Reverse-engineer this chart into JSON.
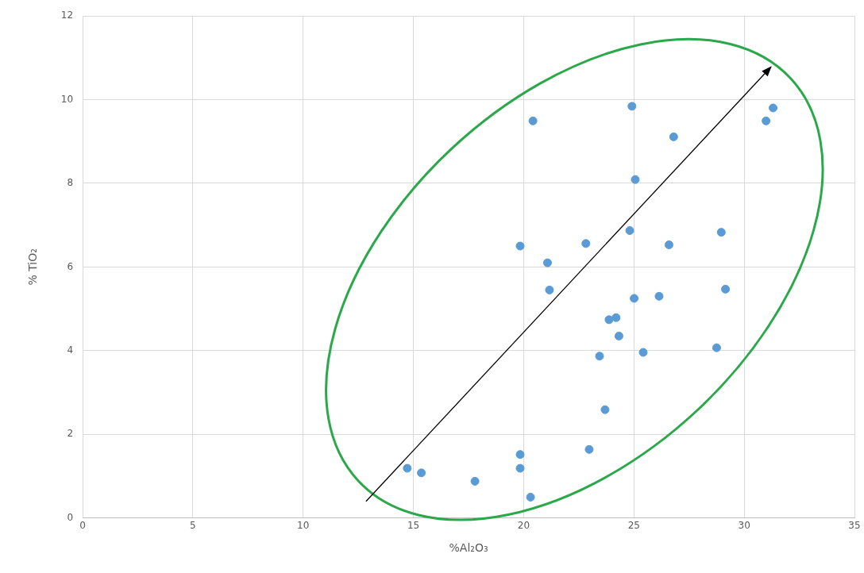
{
  "chart_data": {
    "type": "scatter",
    "xlabel": "%Al₂O₃",
    "ylabel": "% TiO₂",
    "xlim": [
      0,
      35
    ],
    "xticks": [
      0,
      5,
      10,
      15,
      20,
      25,
      30,
      35
    ],
    "ylim": [
      0,
      12
    ],
    "yticks": [
      0,
      2,
      4,
      6,
      8,
      10,
      12
    ],
    "grid": true,
    "legend": false,
    "marker": "circle",
    "series": [
      {
        "color": "#5b9bd5",
        "x": [
          20.42,
          19.84,
          22.82,
          21.08,
          21.17,
          23.87,
          24.19,
          24.32,
          23.44,
          23.69,
          22.97,
          19.84,
          19.84,
          14.72,
          15.36,
          17.79,
          20.31,
          24.91,
          31.31,
          30.99,
          26.8,
          25.06,
          24.81,
          28.96,
          26.59,
          29.15,
          25.01,
          26.14,
          25.42,
          28.75
        ],
        "values": [
          9.49,
          6.5,
          6.56,
          6.1,
          5.45,
          4.74,
          4.79,
          4.35,
          3.87,
          2.59,
          1.64,
          1.52,
          1.19,
          1.19,
          1.08,
          0.88,
          0.5,
          9.84,
          9.8,
          9.49,
          9.11,
          8.09,
          6.87,
          6.83,
          6.53,
          5.47,
          5.25,
          5.3,
          3.96,
          4.07
        ]
      }
    ]
  }
}
